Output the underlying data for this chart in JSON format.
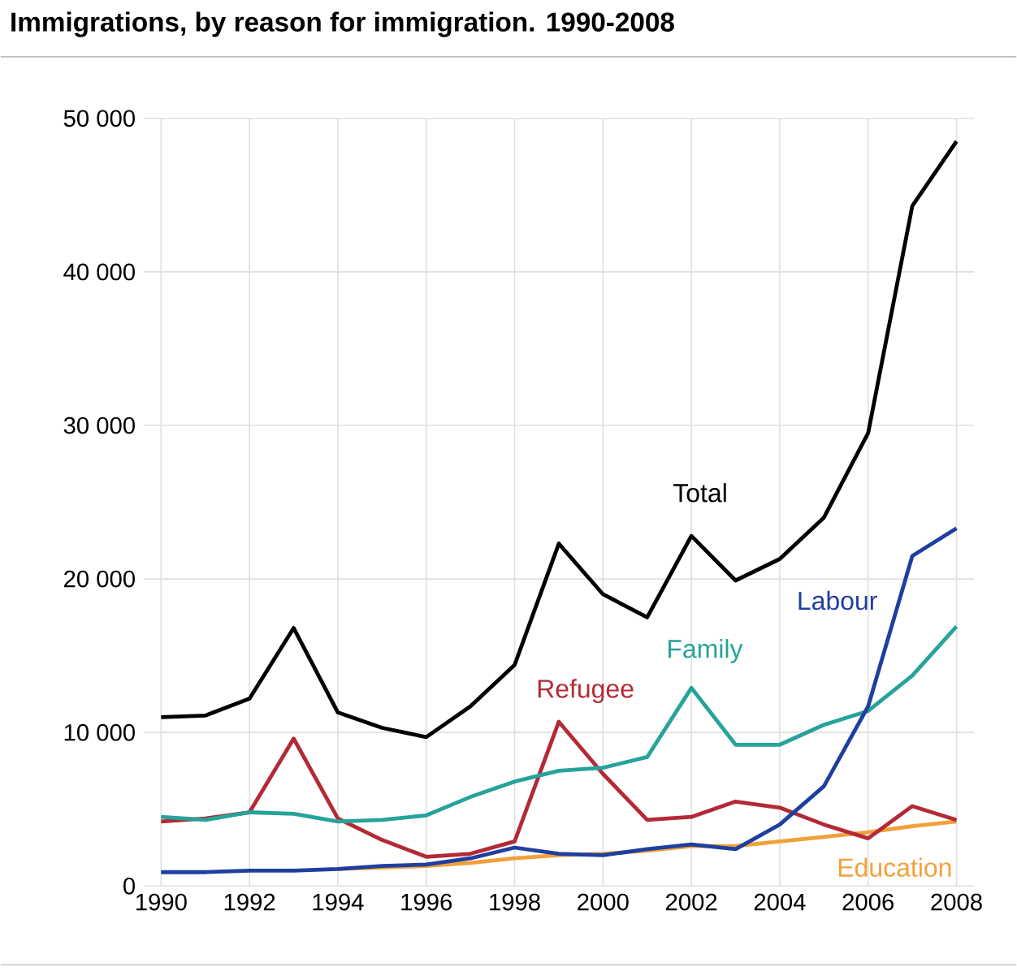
{
  "chart_data": {
    "type": "line",
    "title": "Immigrations, by reason for immigration. 1990-2008",
    "x": [
      1990,
      1991,
      1992,
      1993,
      1994,
      1995,
      1996,
      1997,
      1998,
      1999,
      2000,
      2001,
      2002,
      2003,
      2004,
      2005,
      2006,
      2007,
      2008
    ],
    "series": [
      {
        "name": "Total",
        "color": "#000000",
        "values": [
          11000,
          11100,
          12200,
          16800,
          11300,
          10300,
          9700,
          11700,
          14400,
          22300,
          19000,
          17500,
          22800,
          19900,
          21300,
          24000,
          29500,
          44300,
          48500
        ]
      },
      {
        "name": "Labour",
        "color": "#1f3fa0",
        "values": [
          900,
          900,
          1000,
          1000,
          1100,
          1300,
          1400,
          1800,
          2500,
          2100,
          2000,
          2400,
          2700,
          2400,
          4000,
          6500,
          11700,
          21500,
          23300
        ]
      },
      {
        "name": "Family",
        "color": "#26a39a",
        "values": [
          4500,
          4300,
          4800,
          4700,
          4200,
          4300,
          4600,
          5800,
          6800,
          7500,
          7700,
          8400,
          12900,
          9200,
          9200,
          10500,
          11400,
          13700,
          16900
        ]
      },
      {
        "name": "Refugee",
        "color": "#b32a36",
        "values": [
          4200,
          4400,
          4800,
          9600,
          4400,
          3000,
          1900,
          2100,
          2900,
          10700,
          7300,
          4300,
          4500,
          5500,
          5100,
          4000,
          3100,
          5200,
          4300
        ]
      },
      {
        "name": "Education",
        "color": "#f2a03a",
        "values": [
          null,
          null,
          null,
          null,
          1100,
          1200,
          1300,
          1500,
          1800,
          2000,
          2100,
          2300,
          2600,
          2600,
          2900,
          3200,
          3500,
          3900,
          4200
        ]
      }
    ],
    "xlim": [
      1989.6,
      2008.4
    ],
    "xticks": [
      1990,
      1992,
      1994,
      1996,
      1998,
      2000,
      2002,
      2004,
      2006,
      2008
    ],
    "ylim": [
      0,
      50000
    ],
    "yticks": [
      0,
      {
        "value": 10000,
        "label": "10 000"
      },
      {
        "value": 20000,
        "label": "20 000"
      },
      {
        "value": 30000,
        "label": "30 000"
      },
      {
        "value": 40000,
        "label": "40 000"
      },
      {
        "value": 50000,
        "label": "50 000"
      }
    ],
    "grid": true,
    "legend": false,
    "marker": "none",
    "line_style": "solid"
  }
}
